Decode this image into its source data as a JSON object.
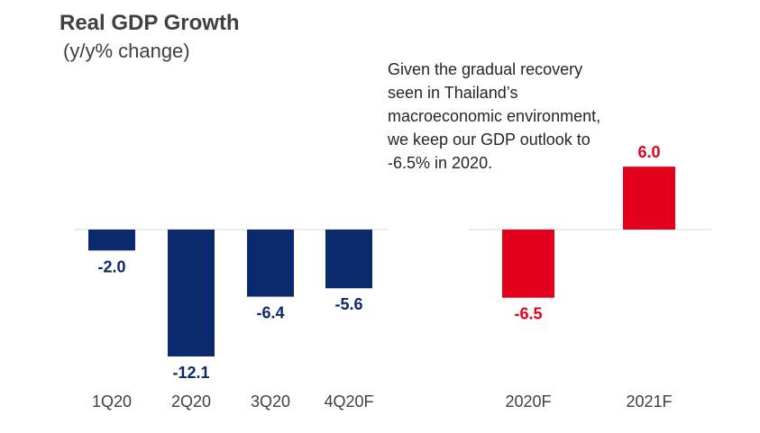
{
  "title": "Real GDP Growth",
  "subtitle": "(y/y% change)",
  "annotation": "Given the gradual recovery seen in Thailand’s macroeconomic environment, we keep our GDP outlook to -6.5% in 2020.",
  "colors": {
    "quarterly": "#0b2a6e",
    "annual": "#e3001b",
    "axis": "#d9d9d9"
  },
  "chart_data": [
    {
      "type": "bar",
      "categories": [
        "1Q20",
        "2Q20",
        "3Q20",
        "4Q20F"
      ],
      "values": [
        -2.0,
        -12.1,
        -6.4,
        -5.6
      ],
      "labels": [
        "-2.0",
        "-12.1",
        "-6.4",
        "-5.6"
      ],
      "color": "#0b2a6e"
    },
    {
      "type": "bar",
      "categories": [
        "2020F",
        "2021F"
      ],
      "values": [
        -6.5,
        6.0
      ],
      "labels": [
        "-6.5",
        "6.0"
      ],
      "color": "#e3001b"
    }
  ]
}
